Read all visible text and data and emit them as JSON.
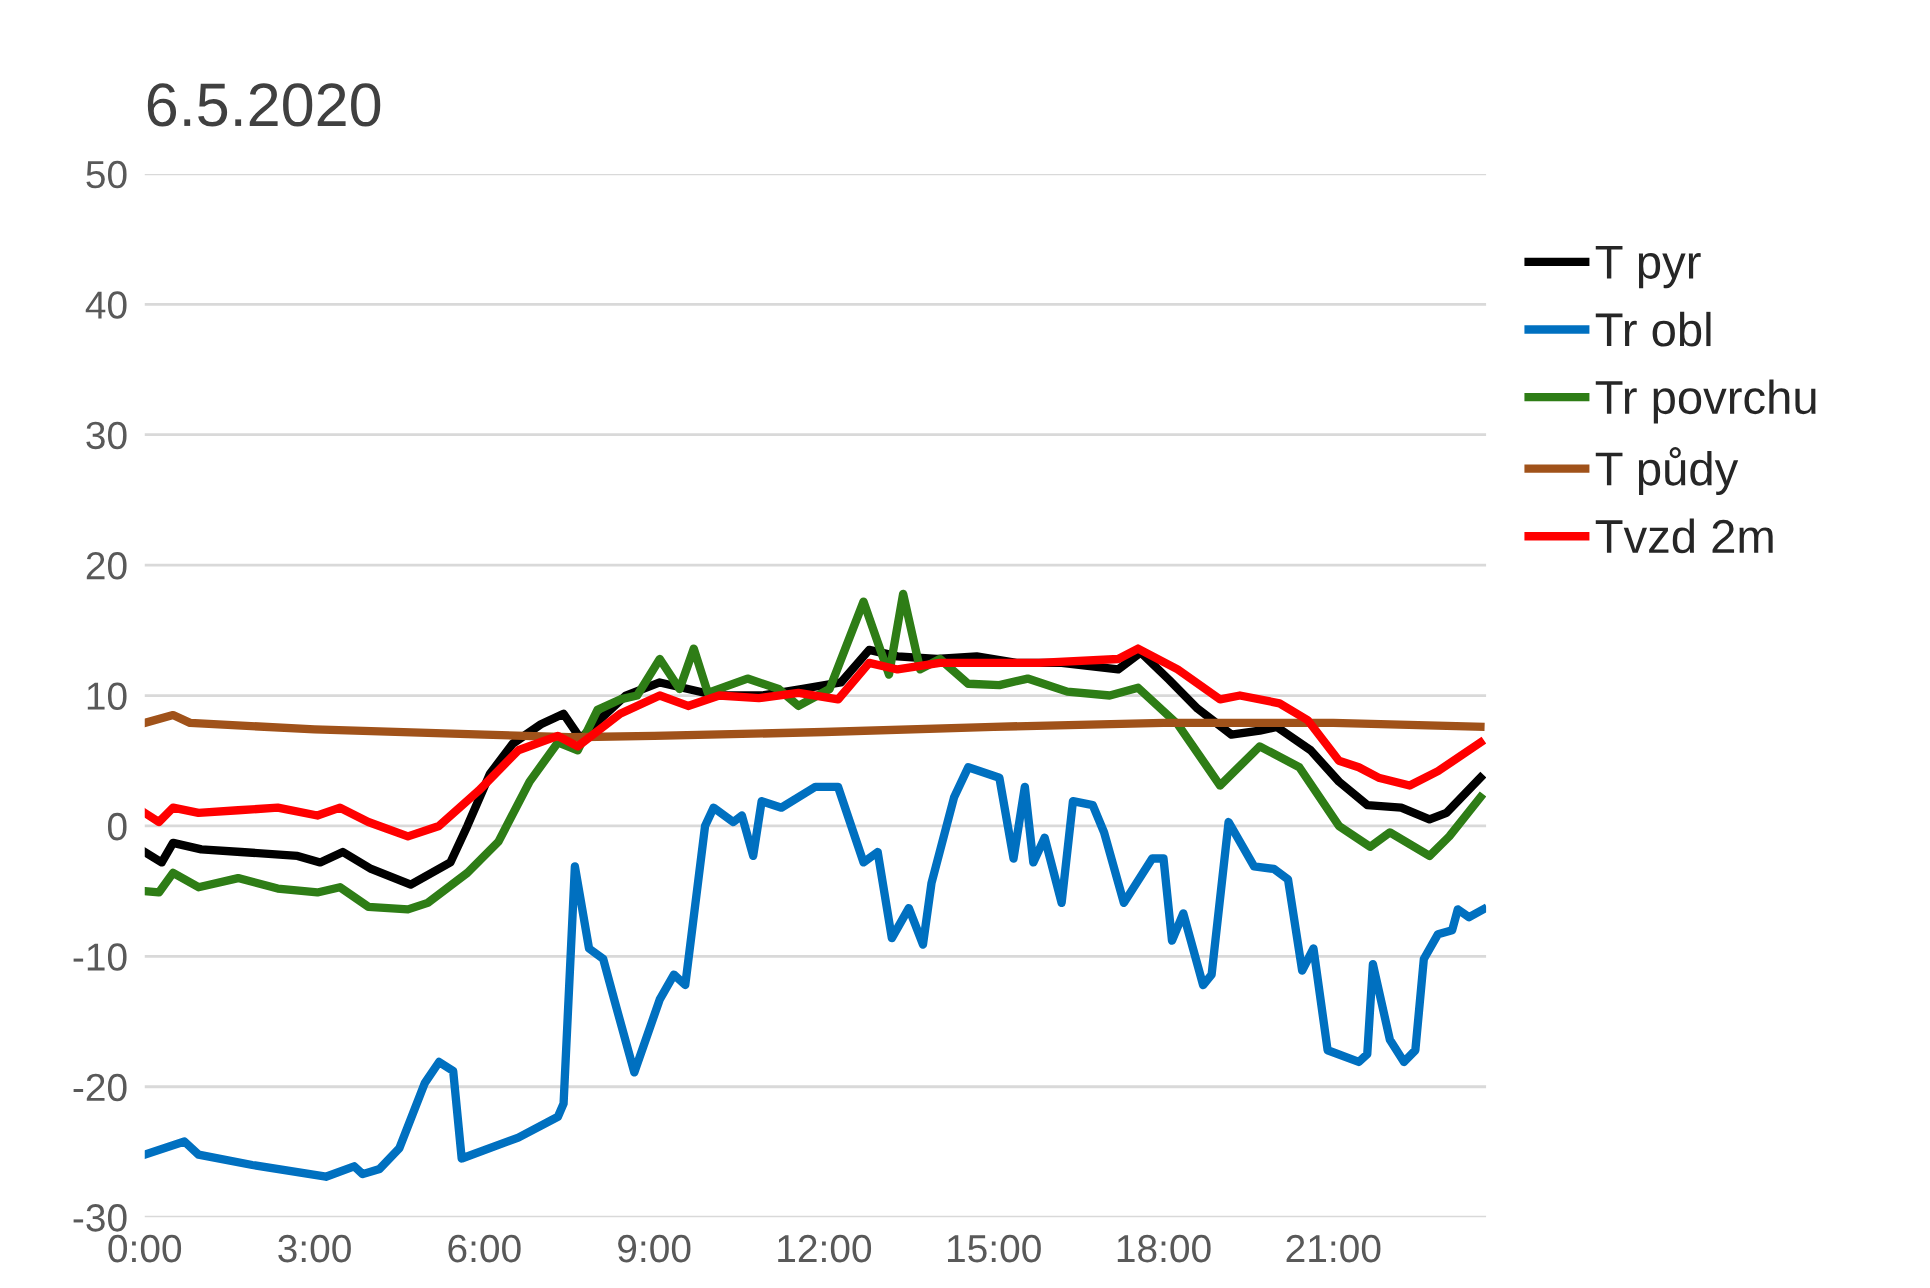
{
  "chart_data": {
    "type": "line",
    "title": "6.5.2020",
    "xlim": [
      0,
      23.7
    ],
    "ylim": [
      -30,
      50
    ],
    "yticks": [
      -30,
      -20,
      -10,
      0,
      10,
      20,
      30,
      40,
      50
    ],
    "xticks": [
      {
        "value": 0,
        "label": "0:00"
      },
      {
        "value": 3,
        "label": "3:00"
      },
      {
        "value": 6,
        "label": "6:00"
      },
      {
        "value": 9,
        "label": "9:00"
      },
      {
        "value": 12,
        "label": "12:00"
      },
      {
        "value": 15,
        "label": "15:00"
      },
      {
        "value": 18,
        "label": "18:00"
      },
      {
        "value": 21,
        "label": "21:00"
      }
    ],
    "grid": "y",
    "legend": "right",
    "marker": "none",
    "line_style": "solid",
    "series": [
      {
        "name": "T pyr",
        "color": "#000000",
        "x": [
          0,
          0.3,
          0.5,
          1,
          1.7,
          2.7,
          3.1,
          3.5,
          4,
          4.7,
          5.4,
          5.7,
          6.1,
          6.5,
          7,
          7.4,
          7.7,
          8,
          8.5,
          9.1,
          9.6,
          10.1,
          10.9,
          11.6,
          12.3,
          12.8,
          13.3,
          14,
          14.7,
          15.4,
          16.2,
          17.2,
          17.6,
          18.1,
          18.6,
          19.2,
          19.7,
          20,
          20.6,
          21.1,
          21.6,
          22.2,
          22.7,
          23,
          23.6
        ],
        "values": [
          -2,
          -2.8,
          -1.3,
          -1.8,
          -2,
          -2.3,
          -2.8,
          -2,
          -3.3,
          -4.5,
          -2.8,
          0,
          4,
          6.3,
          7.8,
          8.6,
          6.7,
          8,
          10,
          11,
          10.5,
          10,
          10,
          10.5,
          11,
          13.5,
          13,
          12.8,
          13,
          12.5,
          12.5,
          12,
          13.3,
          11.2,
          9,
          7,
          7.3,
          7.6,
          5.8,
          3.4,
          1.6,
          1.4,
          0.5,
          1,
          3.7
        ]
      },
      {
        "name": "Tr obl",
        "color": "#0070c0",
        "x": [
          0,
          0.7,
          0.95,
          1.9,
          3.2,
          3.7,
          3.85,
          4.15,
          4.5,
          4.95,
          5.2,
          5.45,
          5.6,
          6.6,
          7.3,
          7.4,
          7.6,
          7.85,
          8.1,
          8.3,
          8.65,
          9.1,
          9.35,
          9.55,
          9.9,
          10.05,
          10.4,
          10.55,
          10.75,
          10.9,
          11.25,
          11.85,
          12.25,
          12.7,
          12.95,
          13.2,
          13.5,
          13.75,
          13.9,
          14.3,
          14.55,
          15.1,
          15.35,
          15.55,
          15.7,
          15.9,
          16.2,
          16.4,
          16.75,
          16.95,
          17.3,
          17.8,
          18.0,
          18.15,
          18.35,
          18.7,
          18.85,
          19.15,
          19.6,
          19.95,
          20.2,
          20.45,
          20.65,
          20.9,
          21.45,
          21.6,
          21.7,
          22.0,
          22.25,
          22.45,
          22.6,
          22.85,
          23.1,
          23.2,
          23.4,
          23.65
        ],
        "values": [
          -25.2,
          -24.2,
          -25.2,
          -26,
          -26.9,
          -26.1,
          -26.7,
          -26.3,
          -24.7,
          -19.7,
          -18.1,
          -18.8,
          -25.5,
          -23.9,
          -22.3,
          -21.3,
          -3.1,
          -9.4,
          -10.2,
          -13.4,
          -18.9,
          -13.3,
          -11.4,
          -12.2,
          0,
          1.4,
          0.3,
          0.8,
          -2.3,
          1.9,
          1.4,
          3,
          3,
          -2.8,
          -2,
          -8.6,
          -6.3,
          -9.1,
          -4.4,
          2.2,
          4.5,
          3.7,
          -2.5,
          3,
          -2.8,
          -0.9,
          -5.9,
          1.9,
          1.6,
          -0.5,
          -5.9,
          -2.5,
          -2.5,
          -8.8,
          -6.7,
          -12.2,
          -11.4,
          0.3,
          -3.1,
          -3.3,
          -4.1,
          -11.1,
          -9.4,
          -17.2,
          -18.1,
          -17.5,
          -10.6,
          -16.4,
          -18.1,
          -17.2,
          -10.2,
          -8.3,
          -8,
          -6.4,
          -7,
          -6.4
        ]
      },
      {
        "name": "Tr povrchu",
        "color": "#2e7d16",
        "x": [
          0,
          0.25,
          0.5,
          0.95,
          1.65,
          2.35,
          3.05,
          3.45,
          3.95,
          4.65,
          5.0,
          5.7,
          6.25,
          6.8,
          7.3,
          7.65,
          8.0,
          8.4,
          8.7,
          9.1,
          9.45,
          9.7,
          9.95,
          10.65,
          11.2,
          11.55,
          12.1,
          12.7,
          13.15,
          13.4,
          13.7,
          14.05,
          14.55,
          15.1,
          15.6,
          16.3,
          17.05,
          17.55,
          18.25,
          19.0,
          19.7,
          20.4,
          21.1,
          21.65,
          22.0,
          22.7,
          23.05,
          23.6
        ],
        "values": [
          -5,
          -5.1,
          -3.6,
          -4.7,
          -4,
          -4.8,
          -5.1,
          -4.7,
          -6.2,
          -6.4,
          -5.9,
          -3.6,
          -1.2,
          3.4,
          6.4,
          5.8,
          8.9,
          9.7,
          10,
          12.8,
          10.5,
          13.6,
          10.2,
          11.3,
          10.5,
          9.2,
          10.5,
          17.2,
          11.6,
          17.8,
          12,
          12.8,
          10.9,
          10.8,
          11.3,
          10.3,
          10,
          10.6,
          7.8,
          3.1,
          6.1,
          4.5,
          0,
          -1.6,
          -0.5,
          -2.3,
          -0.8,
          2.2
        ]
      },
      {
        "name": "T půdy",
        "color": "#a0521a",
        "x": [
          0,
          0.5,
          0.8,
          3,
          6,
          7.5,
          9,
          12,
          15,
          18,
          21,
          23.6
        ],
        "values": [
          7.9,
          8.5,
          7.9,
          7.4,
          7,
          6.8,
          6.9,
          7.2,
          7.6,
          7.9,
          7.9,
          7.6
        ]
      },
      {
        "name": "Tvzd 2m",
        "color": "#ff0000",
        "x": [
          0,
          0.25,
          0.5,
          0.95,
          1.65,
          2.35,
          3.05,
          3.45,
          3.95,
          4.65,
          5.2,
          5.9,
          6.6,
          7.3,
          7.65,
          8.4,
          9.1,
          9.6,
          10.15,
          10.85,
          11.55,
          12.25,
          12.8,
          13.3,
          14.05,
          14.75,
          15.8,
          17.2,
          17.55,
          18.25,
          19.0,
          19.35,
          20.05,
          20.55,
          21.1,
          21.45,
          21.8,
          22.35,
          22.85,
          23.6
        ],
        "values": [
          1,
          0.3,
          1.4,
          1,
          1.2,
          1.4,
          0.8,
          1.4,
          0.3,
          -0.8,
          0,
          2.7,
          5.8,
          6.9,
          6.1,
          8.6,
          10,
          9.2,
          10,
          9.8,
          10.2,
          9.7,
          12.5,
          12,
          12.5,
          12.5,
          12.5,
          12.8,
          13.6,
          12,
          9.7,
          10,
          9.4,
          8.1,
          5,
          4.5,
          3.7,
          3.1,
          4.2,
          6.4
        ]
      }
    ]
  }
}
